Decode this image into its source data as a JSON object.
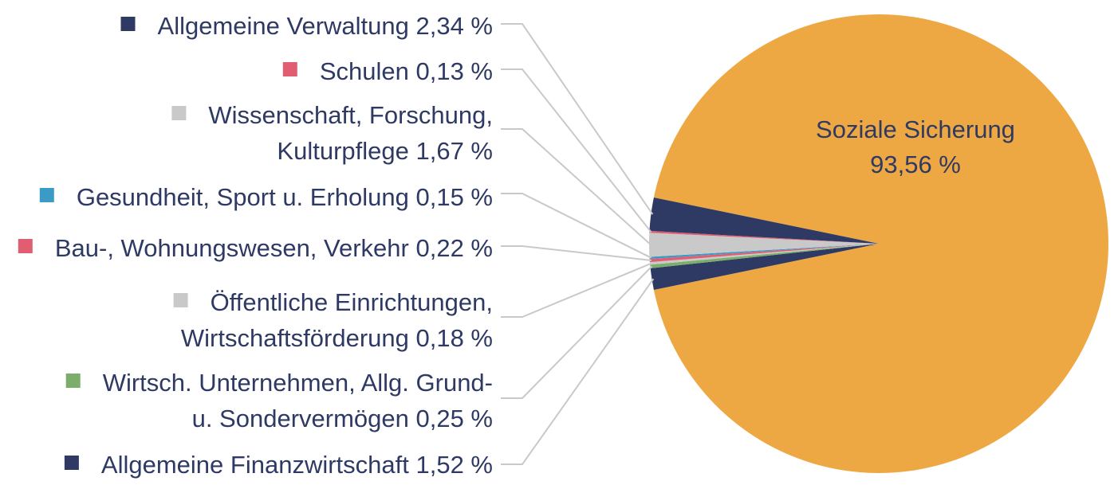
{
  "chart_data": {
    "type": "pie",
    "slices": [
      {
        "label": "Soziale Sicherung",
        "label_lines": [
          "Soziale Sicherung",
          "93,56 %"
        ],
        "value": 93.56,
        "value_text": "93,56 %",
        "color": "#eea843"
      },
      {
        "label": "Allgemeine Finanzwirtschaft",
        "label_lines": [
          "Allgemeine Finanzwirtschaft 1,52 %"
        ],
        "value": 1.52,
        "value_text": "1,52 %",
        "color": "#2e3a64"
      },
      {
        "label": "Wirtsch. Unternehmen, Allg. Grund- u. Sondervermögen",
        "label_lines": [
          "Wirtsch. Unternehmen, Allg. Grund-",
          "u. Sondervermögen 0,25 %"
        ],
        "value": 0.25,
        "value_text": "0,25 %",
        "color": "#7aae6a"
      },
      {
        "label": "Öffentliche Einrichtungen, Wirtschaftsförderung",
        "label_lines": [
          "Öffentliche Einrichtungen,",
          "Wirtschaftsförderung 0,18 %"
        ],
        "value": 0.18,
        "value_text": "0,18 %",
        "color": "#c9c9c9"
      },
      {
        "label": "Bau-, Wohnungswesen, Verkehr",
        "label_lines": [
          "Bau-, Wohnungswesen, Verkehr 0,22 %"
        ],
        "value": 0.22,
        "value_text": "0,22 %",
        "color": "#e05d72"
      },
      {
        "label": "Gesundheit, Sport u. Erholung",
        "label_lines": [
          "Gesundheit, Sport u. Erholung 0,15 %"
        ],
        "value": 0.15,
        "value_text": "0,15 %",
        "color": "#3a9cc4"
      },
      {
        "label": "Wissenschaft, Forschung, Kulturpflege",
        "label_lines": [
          "Wissenschaft, Forschung,",
          "Kulturpflege 1,67 %"
        ],
        "value": 1.67,
        "value_text": "1,67 %",
        "color": "#c9c9c9"
      },
      {
        "label": "Schulen",
        "label_lines": [
          "Schulen 0,13 %"
        ],
        "value": 0.13,
        "value_text": "0,13 %",
        "color": "#e05d72"
      },
      {
        "label": "Allgemeine Verwaltung",
        "label_lines": [
          "Allgemeine Verwaltung 2,34 %"
        ],
        "value": 2.34,
        "value_text": "2,34 %",
        "color": "#2e3a64"
      }
    ],
    "legend_placement": "left",
    "leader_line_color": "#c9c9c9"
  }
}
